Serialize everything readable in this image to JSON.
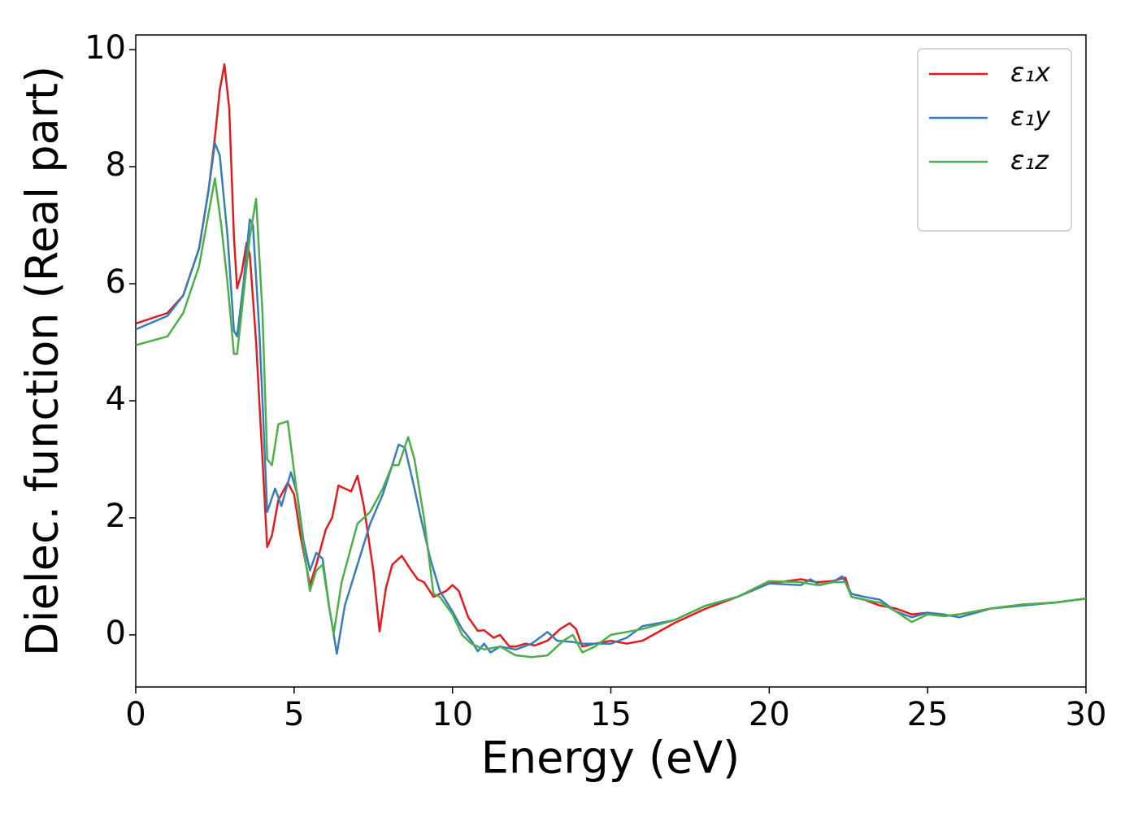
{
  "chart_data": {
    "type": "line",
    "xlabel": "Energy (eV)",
    "ylabel": "Dielec. function (Real part)",
    "xlim": [
      0,
      30
    ],
    "xticks": [
      0,
      5,
      10,
      15,
      20,
      25,
      30
    ],
    "ylim": [
      -0.89,
      10.25
    ],
    "yticks": [
      0,
      2,
      4,
      6,
      8,
      10
    ],
    "legend": "upper right",
    "series": [
      {
        "name": "ε₁x",
        "color": "#e41a1c",
        "x": [
          0,
          1,
          1.5,
          2,
          2.3,
          2.5,
          2.65,
          2.8,
          2.95,
          3.1,
          3.2,
          3.35,
          3.5,
          3.6,
          3.8,
          4.0,
          4.15,
          4.3,
          4.5,
          4.8,
          5.0,
          5.2,
          5.5,
          5.7,
          6.0,
          6.2,
          6.4,
          6.6,
          6.8,
          7.0,
          7.2,
          7.5,
          7.7,
          7.9,
          8.1,
          8.4,
          8.7,
          8.9,
          9.1,
          9.4,
          9.6,
          9.8,
          10.0,
          10.2,
          10.5,
          10.8,
          11.0,
          11.3,
          11.5,
          11.8,
          12.0,
          12.3,
          12.6,
          13.0,
          13.4,
          13.7,
          13.9,
          14.1,
          14.5,
          15,
          15.5,
          16,
          17,
          18,
          19,
          20,
          21,
          21.5,
          22,
          22.4,
          22.6,
          23,
          23.5,
          24,
          24.5,
          25,
          25.5,
          26,
          27,
          28,
          29,
          30
        ],
        "values": [
          5.32,
          5.5,
          5.8,
          6.6,
          7.6,
          8.5,
          9.3,
          9.75,
          9.0,
          6.8,
          5.92,
          6.2,
          6.7,
          6.5,
          5.0,
          3.0,
          1.5,
          1.7,
          2.3,
          2.6,
          2.4,
          1.7,
          0.85,
          1.2,
          1.8,
          2.0,
          2.55,
          2.5,
          2.45,
          2.72,
          2.2,
          1.1,
          0.06,
          0.8,
          1.2,
          1.35,
          1.1,
          0.95,
          0.9,
          0.65,
          0.7,
          0.75,
          0.85,
          0.75,
          0.3,
          0.07,
          0.08,
          -0.05,
          0.0,
          -0.2,
          -0.2,
          -0.15,
          -0.18,
          -0.1,
          0.1,
          0.2,
          0.1,
          -0.2,
          -0.15,
          -0.1,
          -0.15,
          -0.1,
          0.2,
          0.45,
          0.65,
          0.88,
          0.95,
          0.9,
          0.92,
          0.98,
          0.65,
          0.6,
          0.5,
          0.45,
          0.35,
          0.38,
          0.32,
          0.35,
          0.45,
          0.52,
          0.55,
          0.62
        ]
      },
      {
        "name": "ε₁y",
        "color": "#377eb8",
        "x": [
          0,
          1,
          1.5,
          2,
          2.3,
          2.5,
          2.65,
          2.9,
          3.1,
          3.2,
          3.4,
          3.6,
          3.7,
          3.9,
          4.0,
          4.15,
          4.4,
          4.6,
          4.9,
          5.1,
          5.3,
          5.5,
          5.7,
          5.9,
          6.1,
          6.35,
          6.6,
          7.0,
          7.4,
          7.8,
          8.1,
          8.3,
          8.5,
          8.8,
          9.0,
          9.3,
          9.6,
          10,
          10.3,
          10.6,
          10.8,
          11.0,
          11.2,
          11.5,
          12,
          12.5,
          13,
          13.3,
          13.8,
          14.1,
          14.5,
          15,
          15.5,
          16,
          17,
          18,
          19,
          20,
          21,
          21.3,
          21.6,
          22,
          22.3,
          22.6,
          23,
          23.5,
          24,
          24.5,
          25,
          25.5,
          26,
          27,
          28,
          29,
          30
        ],
        "values": [
          5.22,
          5.45,
          5.8,
          6.6,
          7.6,
          8.4,
          8.2,
          6.8,
          5.2,
          5.1,
          6.0,
          7.1,
          7.0,
          5.2,
          4.0,
          2.1,
          2.5,
          2.2,
          2.78,
          2.4,
          1.6,
          1.1,
          1.4,
          1.3,
          0.5,
          -0.32,
          0.5,
          1.2,
          1.9,
          2.4,
          2.9,
          3.25,
          3.2,
          2.5,
          2.0,
          1.3,
          0.75,
          0.4,
          0.1,
          -0.1,
          -0.28,
          -0.15,
          -0.3,
          -0.2,
          -0.25,
          -0.15,
          0.05,
          -0.1,
          -0.12,
          -0.15,
          -0.15,
          -0.15,
          -0.05,
          0.15,
          0.25,
          0.5,
          0.65,
          0.88,
          0.85,
          0.95,
          0.85,
          0.9,
          1.0,
          0.7,
          0.65,
          0.6,
          0.4,
          0.3,
          0.38,
          0.35,
          0.3,
          0.45,
          0.5,
          0.55,
          0.62
        ]
      },
      {
        "name": "ε₁z",
        "color": "#4daf4a",
        "x": [
          0,
          1,
          1.5,
          2,
          2.3,
          2.5,
          2.7,
          2.9,
          3.1,
          3.2,
          3.4,
          3.6,
          3.8,
          4.0,
          4.15,
          4.3,
          4.5,
          4.8,
          5.0,
          5.3,
          5.5,
          5.7,
          5.9,
          6.1,
          6.25,
          6.5,
          7.0,
          7.4,
          7.8,
          8.1,
          8.3,
          8.6,
          8.8,
          9.1,
          9.4,
          9.6,
          10,
          10.3,
          10.6,
          11.0,
          11.5,
          12,
          12.5,
          13,
          13.5,
          13.8,
          14.1,
          14.5,
          15,
          15.5,
          16,
          17,
          18,
          19,
          20,
          21,
          21.5,
          22,
          22.4,
          22.6,
          23,
          23.5,
          24,
          24.5,
          25,
          25.5,
          26,
          27,
          28,
          29,
          30
        ],
        "values": [
          4.95,
          5.1,
          5.5,
          6.3,
          7.2,
          7.8,
          7.0,
          6.0,
          4.8,
          4.8,
          5.8,
          6.8,
          7.45,
          5.5,
          3.0,
          2.9,
          3.6,
          3.65,
          2.8,
          1.5,
          0.75,
          1.1,
          1.2,
          0.5,
          0.02,
          0.9,
          1.9,
          2.1,
          2.5,
          2.9,
          2.9,
          3.38,
          3.0,
          2.0,
          0.7,
          0.65,
          0.35,
          0.0,
          -0.15,
          -0.25,
          -0.2,
          -0.35,
          -0.38,
          -0.35,
          -0.1,
          0.0,
          -0.3,
          -0.2,
          0.0,
          0.05,
          0.1,
          0.25,
          0.5,
          0.65,
          0.92,
          0.9,
          0.85,
          0.9,
          0.9,
          0.65,
          0.6,
          0.55,
          0.4,
          0.22,
          0.35,
          0.32,
          0.35,
          0.45,
          0.52,
          0.55,
          0.62
        ]
      }
    ]
  }
}
